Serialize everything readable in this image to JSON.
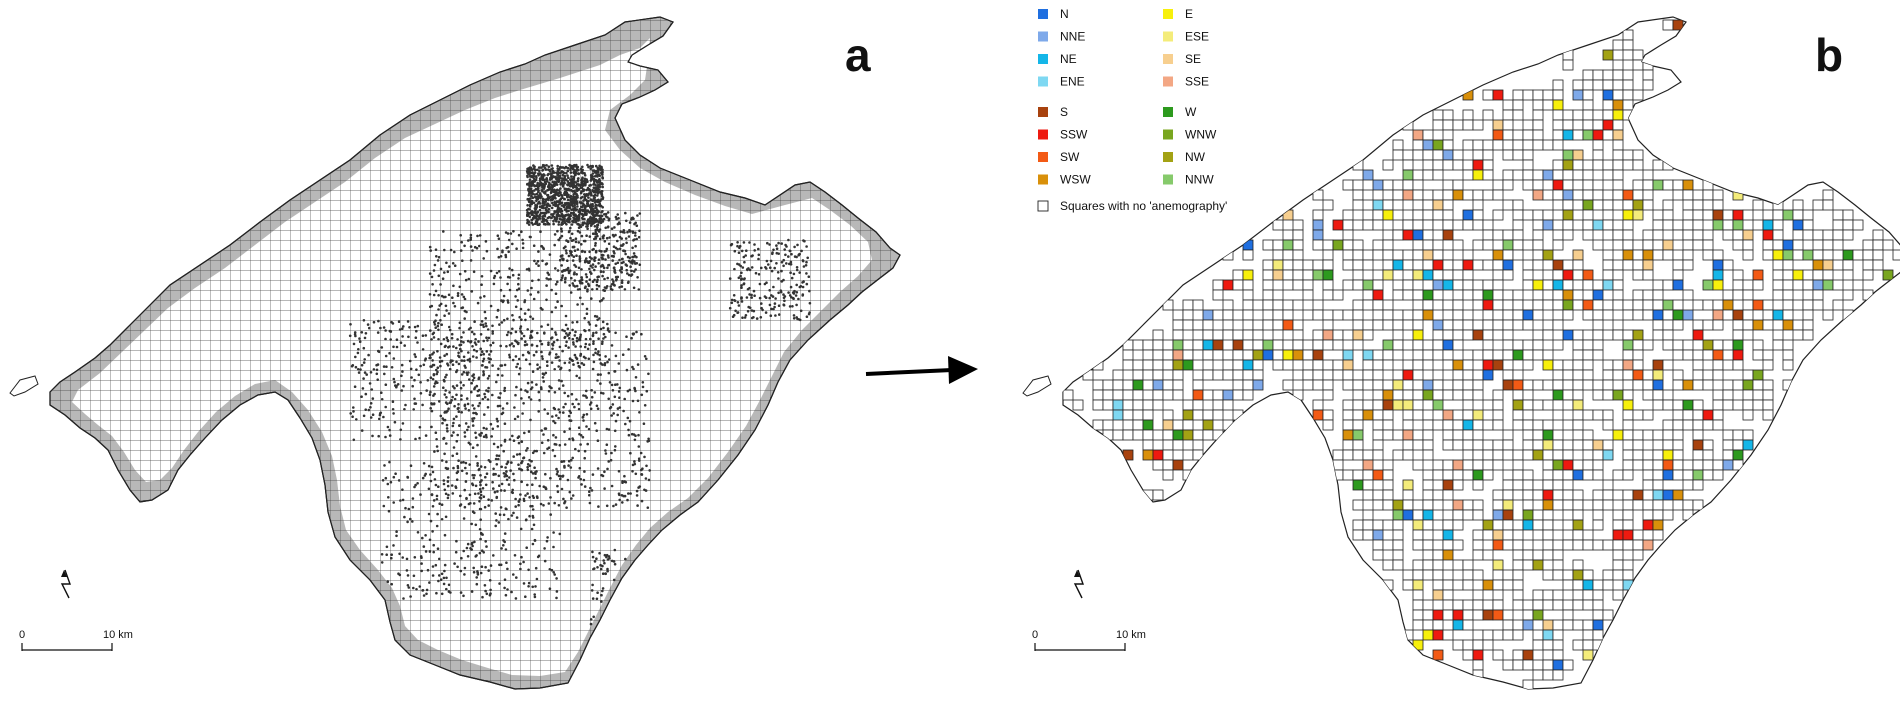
{
  "panel_a": {
    "letter": "a",
    "scale": {
      "zero": "0",
      "distance": "10 km"
    }
  },
  "panel_b": {
    "letter": "b",
    "scale": {
      "zero": "0",
      "distance": "10 km"
    }
  },
  "legend": {
    "items": [
      {
        "label": "N",
        "color": "#1f6fe0"
      },
      {
        "label": "NNE",
        "color": "#7ea9ea"
      },
      {
        "label": "NE",
        "color": "#14b6e8"
      },
      {
        "label": "ENE",
        "color": "#7ed8f2"
      },
      {
        "label": "S",
        "color": "#a8420e"
      },
      {
        "label": "SSW",
        "color": "#ee1a10"
      },
      {
        "label": "SW",
        "color": "#f35a15"
      },
      {
        "label": "WSW",
        "color": "#d9900a"
      },
      {
        "label": "E",
        "color": "#f7f00c"
      },
      {
        "label": "ESE",
        "color": "#f4ec7a"
      },
      {
        "label": "SE",
        "color": "#f7cf8f"
      },
      {
        "label": "SSE",
        "color": "#f3a784"
      },
      {
        "label": "W",
        "color": "#2d9a1e"
      },
      {
        "label": "WNW",
        "color": "#79a61f"
      },
      {
        "label": "NW",
        "color": "#a3a214"
      },
      {
        "label": "NNW",
        "color": "#86ca6b"
      }
    ],
    "no_data_label": "Squares with no 'anemography'"
  },
  "colors": {
    "grid_line": "#333333",
    "dot": "#333333",
    "shore": "#b3b3b3",
    "arrow": "#000000"
  }
}
